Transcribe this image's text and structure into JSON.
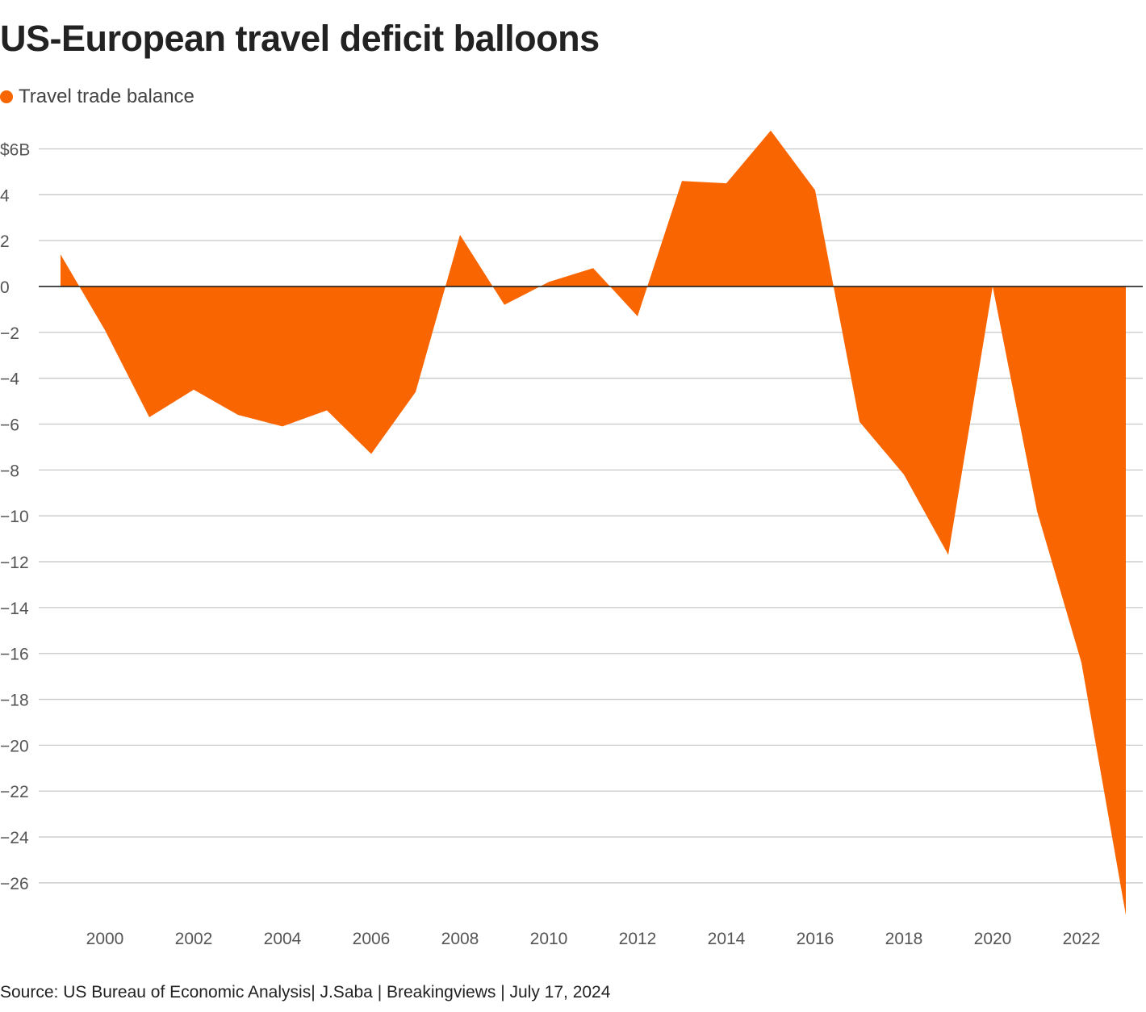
{
  "title": "US-European travel deficit balloons",
  "legend": {
    "label": "Travel trade balance",
    "color": "#f96500"
  },
  "source": "Source: US Bureau of Economic Analysis| J.Saba | Breakingviews | July 17, 2024",
  "chart_data": {
    "type": "area",
    "title": "US-European travel deficit balloons",
    "xlabel": "",
    "ylabel": "",
    "ylim": [
      -27.5,
      7
    ],
    "grid": true,
    "legend_position": "top-left",
    "y_ticks": [
      6,
      4,
      2,
      0,
      -2,
      -4,
      -6,
      -8,
      -10,
      -12,
      -14,
      -16,
      -18,
      -20,
      -22,
      -24,
      -26
    ],
    "y_tick_labels": [
      "$6B",
      "4",
      "2",
      "0",
      "−2",
      "−4",
      "−6",
      "−8",
      "−10",
      "−12",
      "−14",
      "−16",
      "−18",
      "−20",
      "−22",
      "−24",
      "−26"
    ],
    "x_ticks": [
      2000,
      2002,
      2004,
      2006,
      2008,
      2010,
      2012,
      2014,
      2016,
      2018,
      2020,
      2022
    ],
    "x_tick_labels": [
      "2000",
      "2002",
      "2004",
      "2006",
      "2008",
      "2010",
      "2012",
      "2014",
      "2016",
      "2018",
      "2020",
      "2022"
    ],
    "x": [
      1999,
      2000,
      2001,
      2002,
      2003,
      2004,
      2005,
      2006,
      2007,
      2008,
      2009,
      2010,
      2011,
      2012,
      2013,
      2014,
      2015,
      2016,
      2017,
      2018,
      2019,
      2020,
      2021,
      2022,
      2023
    ],
    "series": [
      {
        "name": "Travel trade balance",
        "color": "#f96500",
        "values": [
          1.4,
          -1.9,
          -5.7,
          -4.5,
          -5.6,
          -6.1,
          -5.4,
          -7.3,
          -4.6,
          2.25,
          -0.8,
          0.2,
          0.8,
          -1.3,
          4.6,
          4.5,
          6.8,
          4.2,
          -5.9,
          -8.2,
          -11.7,
          0.0,
          -9.8,
          -16.4,
          -27.4
        ]
      }
    ]
  }
}
